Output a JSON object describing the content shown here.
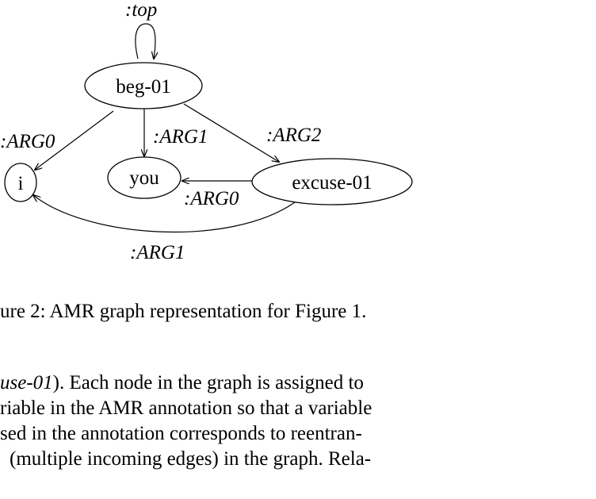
{
  "figure": {
    "nodes": {
      "beg": "beg-01",
      "i": "i",
      "you": "you",
      "excuse": "excuse-01"
    },
    "edges": {
      "top": ":top",
      "beg_i": ":ARG0",
      "beg_you": ":ARG1",
      "beg_excuse": ":ARG2",
      "excuse_you": ":ARG0",
      "excuse_i": ":ARG1"
    },
    "caption": "ure 2: AMR graph representation for Figure 1."
  },
  "body_text": {
    "line1_italic": "use-01",
    "line1_rest": "). Each node in the graph is assigned to",
    "line2": "riable in the AMR annotation so that a variable",
    "line3": "sed in the annotation corresponds to reentran-",
    "line4": "(multiple incoming edges) in the graph. Rela-"
  }
}
